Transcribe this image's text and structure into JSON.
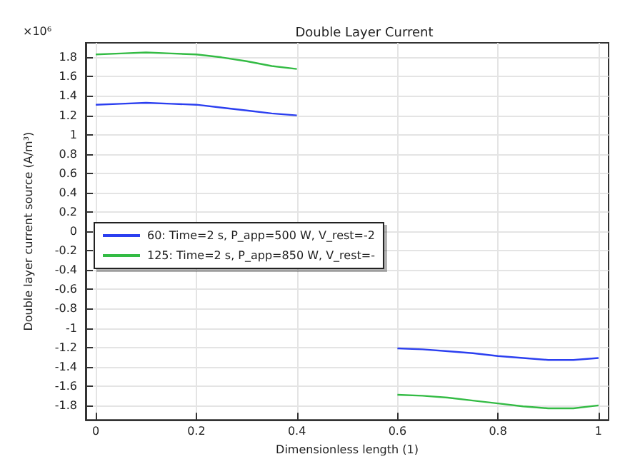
{
  "chart_data": {
    "type": "line",
    "title": "Double Layer Current",
    "xlabel": "Dimensionless length (1)",
    "ylabel": "Double layer current source (A/m³)",
    "annotations": [
      "×10⁶"
    ],
    "x": [
      0,
      0.05,
      0.1,
      0.15,
      0.2,
      0.25,
      0.3,
      0.35,
      0.4,
      0.5,
      0.6,
      0.65,
      0.7,
      0.75,
      0.8,
      0.85,
      0.9,
      0.95,
      1.0
    ],
    "series": [
      {
        "name": "60: Time=2 s, P_app=500 W, V_rest=-2",
        "color": "#2b3ff0",
        "values": [
          1.31,
          1.32,
          1.33,
          1.32,
          1.31,
          1.28,
          1.25,
          1.22,
          1.2,
          null,
          -1.21,
          -1.22,
          -1.24,
          -1.26,
          -1.29,
          -1.31,
          -1.33,
          -1.33,
          -1.31
        ]
      },
      {
        "name": "125: Time=2 s, P_app=850 W, V_rest=-",
        "color": "#33bb44",
        "values": [
          1.83,
          1.84,
          1.85,
          1.84,
          1.83,
          1.8,
          1.76,
          1.71,
          1.68,
          null,
          -1.69,
          -1.7,
          -1.72,
          -1.75,
          -1.78,
          -1.81,
          -1.83,
          -1.83,
          -1.8
        ]
      }
    ],
    "xlim": [
      -0.02,
      1.02
    ],
    "xticks": [
      0,
      0.2,
      0.4,
      0.6,
      0.8,
      1
    ],
    "ylim": [
      -1.95,
      1.95
    ],
    "yticks": [
      -1.8,
      -1.6,
      -1.4,
      -1.2,
      -1,
      -0.8,
      -0.6,
      -0.4,
      -0.2,
      0,
      0.2,
      0.4,
      0.6,
      0.8,
      1,
      1.2,
      1.4,
      1.6,
      1.8
    ],
    "grid": true,
    "legend": "left",
    "marker": "none",
    "line_style": "solid"
  }
}
